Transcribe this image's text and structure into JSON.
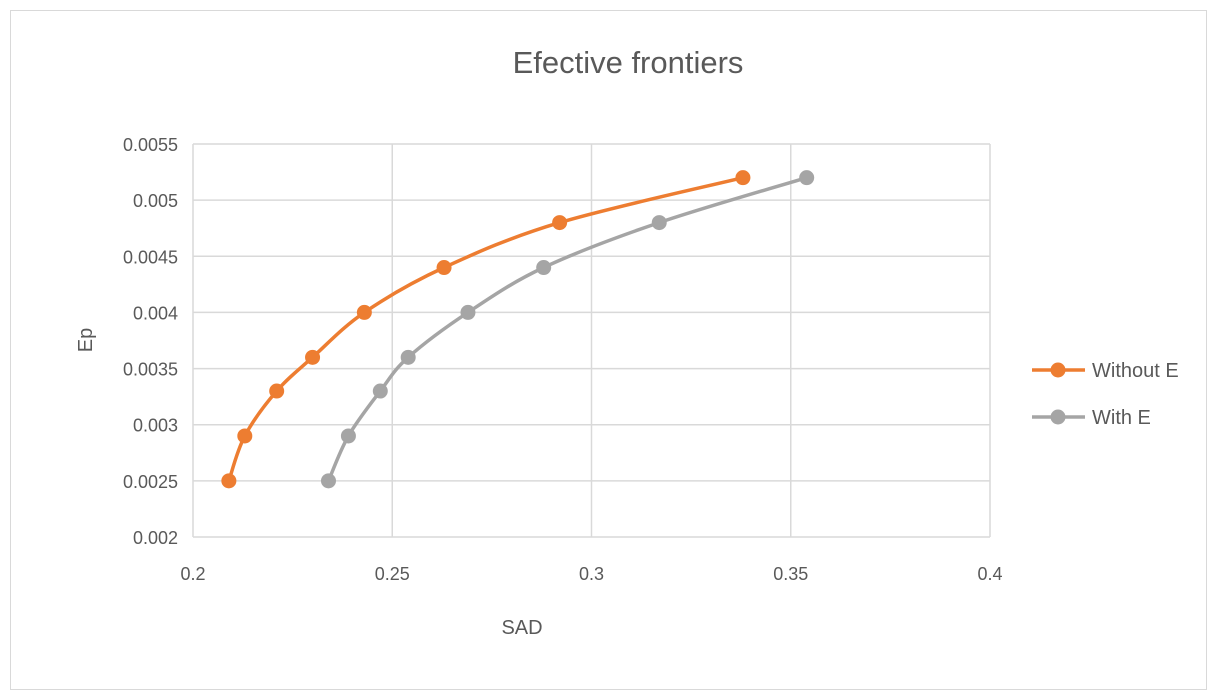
{
  "chart_data": {
    "type": "scatter",
    "title": "Efective frontiers",
    "xlabel": "SAD",
    "ylabel": "Ep",
    "xlim": [
      0.2,
      0.4
    ],
    "ylim": [
      0.002,
      0.0055
    ],
    "x_ticks": [
      "0.2",
      "0.25",
      "0.3",
      "0.35",
      "0.4"
    ],
    "y_ticks": [
      "0.002",
      "0.0025",
      "0.003",
      "0.0035",
      "0.004",
      "0.0045",
      "0.005",
      "0.0055"
    ],
    "grid": true,
    "legend_position": "right",
    "smooth_lines": true,
    "series": [
      {
        "name": "Without E",
        "color": "#ED7D31",
        "x": [
          0.209,
          0.213,
          0.221,
          0.23,
          0.243,
          0.263,
          0.292,
          0.338
        ],
        "y": [
          0.0025,
          0.0029,
          0.0033,
          0.0036,
          0.004,
          0.0044,
          0.0048,
          0.0052
        ]
      },
      {
        "name": "With E",
        "color": "#A5A5A5",
        "x": [
          0.234,
          0.239,
          0.247,
          0.254,
          0.269,
          0.288,
          0.317,
          0.354
        ],
        "y": [
          0.0025,
          0.0029,
          0.0033,
          0.0036,
          0.004,
          0.0044,
          0.0048,
          0.0052
        ]
      }
    ]
  }
}
